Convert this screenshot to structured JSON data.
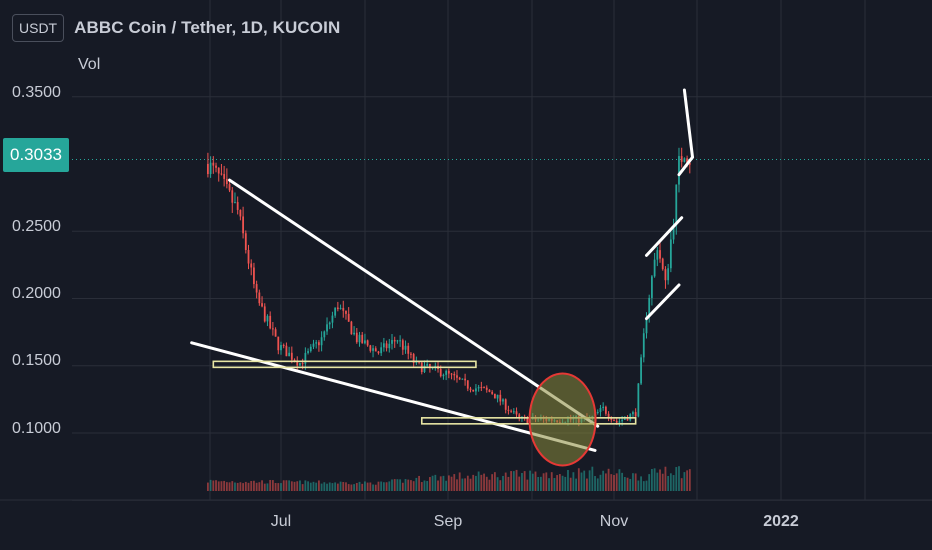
{
  "header": {
    "currency_badge": "USDT",
    "title": "ABBC Coin / Tether, 1D, KUCOIN",
    "indicator": "Vol"
  },
  "last_price": "0.3033",
  "colors": {
    "background": "#161a25",
    "up": "#26a69a",
    "down": "#ef5350",
    "trendline": "#ffffff",
    "support_band": "#e8e6a4",
    "highlight_circle_fill": "#8a8a3a",
    "highlight_circle_stroke": "#e53935"
  },
  "chart_data": {
    "type": "candlestick",
    "title": "ABBC Coin / Tether, 1D, KUCOIN",
    "y_tick_labels": [
      "0.3500",
      "0.2500",
      "0.2000",
      "0.1500",
      "0.1000"
    ],
    "y_ticks": [
      0.35,
      0.25,
      0.2,
      0.15,
      0.1
    ],
    "x_tick_labels": [
      "Jul",
      "Sep",
      "Nov",
      "2022"
    ],
    "ylim": [
      0.04,
      0.39
    ],
    "last_price": 0.3033,
    "grid": true,
    "scale": "linear",
    "price_keypoints": [
      {
        "date": "2021-06-04",
        "close": 0.3
      },
      {
        "date": "2021-06-08",
        "close": 0.29
      },
      {
        "date": "2021-06-15",
        "close": 0.265
      },
      {
        "date": "2021-06-22",
        "close": 0.2
      },
      {
        "date": "2021-06-30",
        "close": 0.165
      },
      {
        "date": "2021-07-08",
        "close": 0.152
      },
      {
        "date": "2021-07-16",
        "close": 0.17
      },
      {
        "date": "2021-07-22",
        "close": 0.195
      },
      {
        "date": "2021-07-29",
        "close": 0.17
      },
      {
        "date": "2021-08-06",
        "close": 0.16
      },
      {
        "date": "2021-08-13",
        "close": 0.17
      },
      {
        "date": "2021-08-20",
        "close": 0.15
      },
      {
        "date": "2021-08-30",
        "close": 0.145
      },
      {
        "date": "2021-09-08",
        "close": 0.135
      },
      {
        "date": "2021-09-17",
        "close": 0.13
      },
      {
        "date": "2021-09-27",
        "close": 0.11
      },
      {
        "date": "2021-10-10",
        "close": 0.11
      },
      {
        "date": "2021-10-23",
        "close": 0.11
      },
      {
        "date": "2021-10-28",
        "close": 0.118
      },
      {
        "date": "2021-11-02",
        "close": 0.108
      },
      {
        "date": "2021-11-09",
        "close": 0.115
      },
      {
        "date": "2021-11-13",
        "close": 0.19
      },
      {
        "date": "2021-11-17",
        "close": 0.24
      },
      {
        "date": "2021-11-20",
        "close": 0.21
      },
      {
        "date": "2021-11-23",
        "close": 0.26
      },
      {
        "date": "2021-11-25",
        "close": 0.3
      },
      {
        "date": "2021-11-27",
        "close": 0.31
      },
      {
        "date": "2021-11-29",
        "close": 0.3033
      }
    ],
    "volume_profile": [
      {
        "date": "2021-06-04",
        "level": 0.3
      },
      {
        "date": "2021-08-06",
        "level": 0.2
      },
      {
        "date": "2021-08-27",
        "level": 0.5
      },
      {
        "date": "2021-10-28",
        "level": 0.75
      },
      {
        "date": "2021-11-13",
        "level": 0.5
      },
      {
        "date": "2021-11-20",
        "level": 1.0
      },
      {
        "date": "2021-11-27",
        "level": 0.75
      }
    ],
    "annotations": [
      {
        "type": "trendline",
        "from": {
          "date": "2021-06-12",
          "price": 0.288
        },
        "to": {
          "date": "2021-10-26",
          "price": 0.105
        }
      },
      {
        "type": "trendline",
        "from": {
          "date": "2021-05-29",
          "price": 0.167
        },
        "to": {
          "date": "2021-10-25",
          "price": 0.087
        }
      },
      {
        "type": "horizontal_band",
        "from": "2021-06-06",
        "to": "2021-09-11",
        "price": 0.151
      },
      {
        "type": "horizontal_band",
        "from": "2021-08-22",
        "to": "2021-11-09",
        "price": 0.109
      },
      {
        "type": "ellipse",
        "center": {
          "date": "2021-10-13",
          "price": 0.11
        }
      },
      {
        "type": "trendline",
        "from": {
          "date": "2021-11-13",
          "price": 0.232
        },
        "to": {
          "date": "2021-11-26",
          "price": 0.26
        }
      },
      {
        "type": "trendline",
        "from": {
          "date": "2021-11-13",
          "price": 0.185
        },
        "to": {
          "date": "2021-11-25",
          "price": 0.21
        }
      },
      {
        "type": "trendline",
        "from": {
          "date": "2021-11-25",
          "price": 0.292
        },
        "to": {
          "date": "2021-11-30",
          "price": 0.305
        }
      },
      {
        "type": "trendline",
        "from": {
          "date": "2021-11-27",
          "price": 0.355
        },
        "to": {
          "date": "2021-11-30",
          "price": 0.305
        }
      }
    ]
  }
}
